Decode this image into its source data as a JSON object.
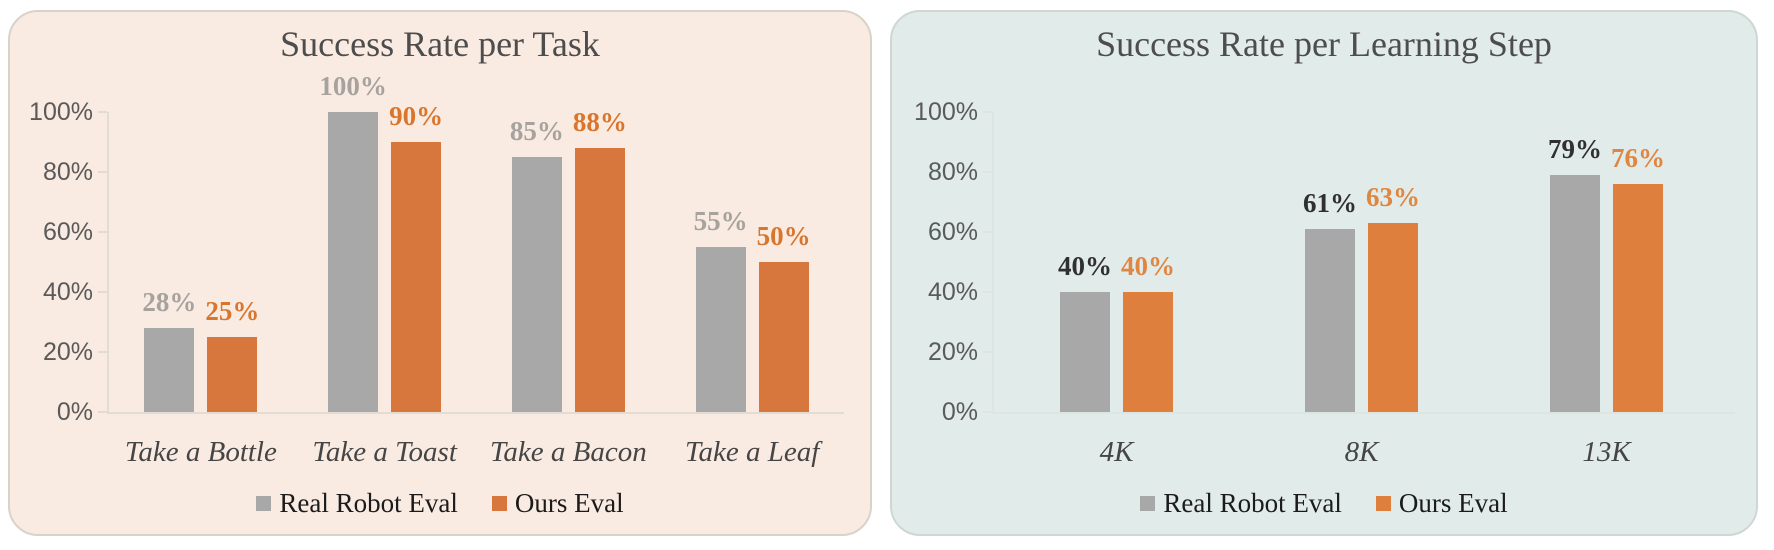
{
  "chart_data": [
    {
      "type": "bar",
      "title": "Success Rate per Task",
      "categories": [
        "Take a Bottle",
        "Take a Toast",
        "Take a Bacon",
        "Take a Leaf"
      ],
      "series": [
        {
          "name": "Real Robot Eval",
          "values": [
            28,
            100,
            85,
            55
          ],
          "bar_color": "#A8A8A8",
          "label_color": "#A6A29D"
        },
        {
          "name": "Ours Eval",
          "values": [
            25,
            90,
            88,
            50
          ],
          "bar_color": "#D7773E",
          "label_color": "#D9762E"
        }
      ],
      "value_suffix": "%",
      "y_ticks": [
        "100%",
        "80%",
        "60%",
        "40%",
        "20%",
        "0%"
      ],
      "ylim": [
        0,
        100
      ],
      "grid": false,
      "legend_position": "bottom",
      "style": {
        "panel_bg": "#FAEBE2",
        "panel_border": "#D8D2C9",
        "axis_line": "#E2DCD4",
        "title_color": "#4D4D4D",
        "tick_text_color": "#5A5A5A",
        "xlabel_color": "#454545"
      }
    },
    {
      "type": "bar",
      "title": "Success Rate per Learning Step",
      "categories": [
        "4K",
        "8K",
        "13K"
      ],
      "series": [
        {
          "name": "Real Robot Eval",
          "values": [
            40,
            61,
            79
          ],
          "bar_color": "#A8A8A8",
          "label_color": "#303030"
        },
        {
          "name": "Ours Eval",
          "values": [
            40,
            63,
            76
          ],
          "bar_color": "#DF7F3E",
          "label_color": "#DF8640"
        }
      ],
      "value_suffix": "%",
      "y_ticks": [
        "100%",
        "80%",
        "60%",
        "40%",
        "20%",
        "0%"
      ],
      "ylim": [
        0,
        100
      ],
      "grid": false,
      "legend_position": "bottom",
      "style": {
        "panel_bg": "#E1EBE9",
        "panel_border": "#CED7D3",
        "axis_line": "#DCE5E2",
        "title_color": "#4D4D4D",
        "tick_text_color": "#5A5A5A",
        "xlabel_color": "#454545"
      }
    }
  ]
}
